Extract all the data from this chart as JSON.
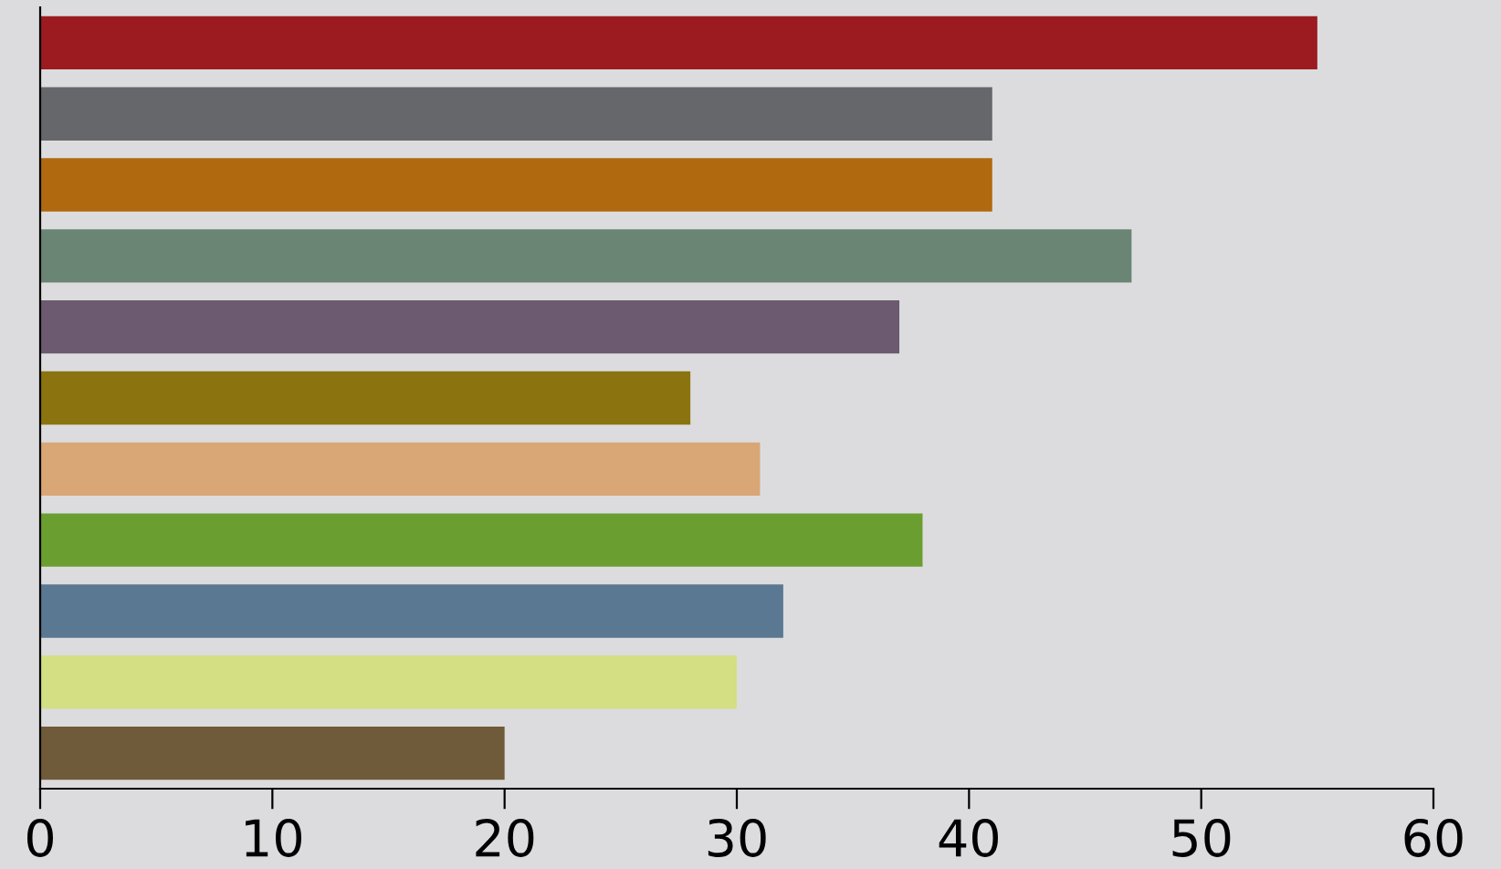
{
  "chart_data": {
    "type": "bar",
    "orientation": "horizontal",
    "categories": [
      null,
      null,
      null,
      null,
      null,
      null,
      null,
      null,
      null,
      null,
      null
    ],
    "values": [
      55,
      41,
      41,
      47,
      37,
      28,
      31,
      38,
      32,
      30,
      20
    ],
    "colors": [
      "#9b1b20",
      "#66676b",
      "#b0690f",
      "#6a8573",
      "#6b5a70",
      "#8b7410",
      "#d9a675",
      "#6b9e31",
      "#5a7891",
      "#d4de82",
      "#6f5a39"
    ],
    "xlim": [
      0,
      60
    ],
    "xticks": [
      0,
      10,
      20,
      30,
      40,
      50,
      60
    ],
    "grid": false,
    "legend": false
  }
}
